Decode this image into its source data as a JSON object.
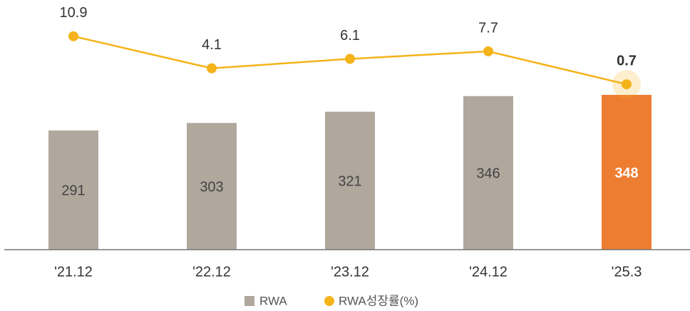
{
  "chart_data": {
    "type": "bar_line",
    "categories": [
      "'21.12",
      "'22.12",
      "'23.12",
      "'24.12",
      "'25.3"
    ],
    "series": [
      {
        "name": "RWA",
        "type": "bar",
        "color": "#b0a79d",
        "colors": [
          "#b0a79d",
          "#b0a79d",
          "#b0a79d",
          "#b0a79d",
          "#ed7d31"
        ],
        "values": [
          291,
          303,
          321,
          346,
          348
        ]
      },
      {
        "name": "RWA성장률(%)",
        "type": "line",
        "axis": "y2",
        "color": "#f5b31a",
        "values": [
          10.9,
          4.1,
          6.1,
          7.7,
          0.7
        ]
      }
    ],
    "ylim": [
      100,
      500
    ],
    "y2lim": [
      -34.4,
      18.6
    ],
    "legend": "bottom"
  }
}
